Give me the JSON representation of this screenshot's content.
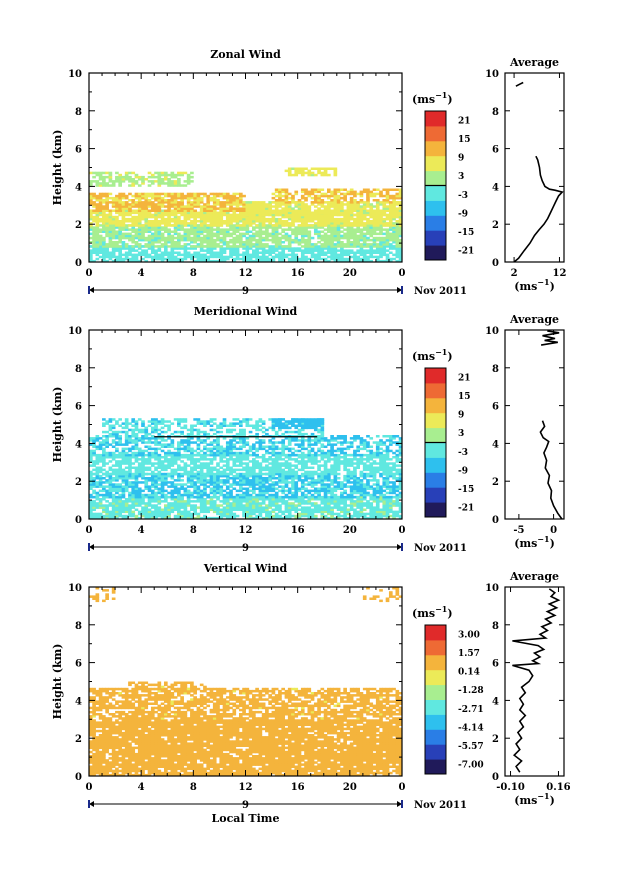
{
  "chart_data": [
    {
      "type": "heatmap",
      "title": "Zonal Wind",
      "ylabel": "Height (km)",
      "x_ticks": [
        "0",
        "4",
        "8",
        "12",
        "16",
        "20",
        "0"
      ],
      "y_ticks": [
        "0",
        "2",
        "4",
        "6",
        "8",
        "10"
      ],
      "xlim": [
        0,
        24
      ],
      "ylim": [
        0,
        10
      ],
      "day_label": "9",
      "date_label": "Nov 2011",
      "colorbar": {
        "unit": "ms",
        "unit_exp": "−1",
        "ticks": [
          "21",
          "15",
          "9",
          "3",
          "-3",
          "-9",
          "-15",
          "-21"
        ],
        "range": [
          -24,
          24
        ]
      },
      "field": {
        "layers": [
          {
            "ybot": 0.0,
            "ytop": 0.8,
            "x0": 0,
            "x1": 24,
            "value": -3,
            "density": 0.75
          },
          {
            "ybot": 0.8,
            "ytop": 1.9,
            "x0": 0,
            "x1": 24,
            "value": 1,
            "density": 0.8
          },
          {
            "ybot": 1.9,
            "ytop": 2.7,
            "x0": 0,
            "x1": 24,
            "value": 6,
            "density": 0.85
          },
          {
            "ybot": 2.7,
            "ytop": 3.6,
            "x0": 0,
            "x1": 12,
            "value": 10,
            "density": 0.85
          },
          {
            "ybot": 2.5,
            "ytop": 3.2,
            "x0": 12,
            "x1": 24,
            "value": 6,
            "density": 0.8
          },
          {
            "ybot": 3.2,
            "ytop": 3.8,
            "x0": 14,
            "x1": 24,
            "value": 10,
            "density": 0.6
          },
          {
            "ybot": 4.0,
            "ytop": 4.7,
            "x0": 0,
            "x1": 8,
            "value": 4,
            "density": 0.6
          },
          {
            "ybot": 4.6,
            "ytop": 4.9,
            "x0": 15,
            "x1": 19,
            "value": 6,
            "density": 0.7
          }
        ]
      },
      "contour_zero": []
    },
    {
      "type": "heatmap",
      "title": "Meridional Wind",
      "ylabel": "Height (km)",
      "x_ticks": [
        "0",
        "4",
        "8",
        "12",
        "16",
        "20",
        "0"
      ],
      "y_ticks": [
        "0",
        "2",
        "4",
        "6",
        "8",
        "10"
      ],
      "xlim": [
        0,
        24
      ],
      "ylim": [
        0,
        10
      ],
      "day_label": "9",
      "date_label": "Nov 2011",
      "colorbar": {
        "unit": "ms",
        "unit_exp": "−1",
        "ticks": [
          "21",
          "15",
          "9",
          "3",
          "-3",
          "-9",
          "-15",
          "-21"
        ],
        "range": [
          -24,
          24
        ]
      },
      "field": {
        "layers": [
          {
            "ybot": 0.0,
            "ytop": 1.2,
            "x0": 0,
            "x1": 24,
            "value": -1,
            "density": 0.8
          },
          {
            "ybot": 1.2,
            "ytop": 2.4,
            "x0": 0,
            "x1": 24,
            "value": -5,
            "density": 0.75
          },
          {
            "ybot": 2.4,
            "ytop": 3.4,
            "x0": 0,
            "x1": 24,
            "value": -2,
            "density": 0.7
          },
          {
            "ybot": 3.4,
            "ytop": 4.4,
            "x0": 0,
            "x1": 24,
            "value": -5,
            "density": 0.6
          },
          {
            "ybot": 4.4,
            "ytop": 5.3,
            "x0": 1,
            "x1": 18,
            "value": -4,
            "density": 0.5
          },
          {
            "ybot": 4.8,
            "ytop": 5.3,
            "x0": 14,
            "x1": 18,
            "value": -8,
            "density": 0.8
          }
        ]
      },
      "contour_zero": [
        {
          "x0": 5,
          "x1": 17.5,
          "y": 4.35
        }
      ]
    },
    {
      "type": "heatmap",
      "title": "Vertical Wind",
      "ylabel": "Height (km)",
      "xlabel": "Local Time",
      "x_ticks": [
        "0",
        "4",
        "8",
        "12",
        "16",
        "20",
        "0"
      ],
      "y_ticks": [
        "0",
        "2",
        "4",
        "6",
        "8",
        "10"
      ],
      "xlim": [
        0,
        24
      ],
      "ylim": [
        0,
        10
      ],
      "day_label": "9",
      "date_label": "Nov 2011",
      "colorbar": {
        "unit": "ms",
        "unit_exp": "−1",
        "ticks": [
          "3.00",
          "1.57",
          "0.14",
          "-1.28",
          "-2.71",
          "-4.14",
          "-5.57",
          "-7.00"
        ],
        "range": [
          -7.7,
          3.7
        ]
      },
      "field": {
        "layers": [
          {
            "ybot": 0.0,
            "ytop": 3.0,
            "x0": 0,
            "x1": 24,
            "value": 0.8,
            "density": 0.9
          },
          {
            "ybot": 3.0,
            "ytop": 4.6,
            "x0": 0,
            "x1": 24,
            "value": 0.6,
            "density": 0.7
          },
          {
            "ybot": 4.5,
            "ytop": 4.9,
            "x0": 3,
            "x1": 9,
            "value": 0.6,
            "density": 0.5
          },
          {
            "ybot": 9.3,
            "ytop": 10.0,
            "x0": 0,
            "x1": 2,
            "value": 0.7,
            "density": 0.3
          },
          {
            "ybot": 9.3,
            "ytop": 10.0,
            "x0": 21,
            "x1": 24,
            "value": 0.7,
            "density": 0.3
          }
        ]
      },
      "contour_zero": []
    }
  ],
  "averages": [
    {
      "title": "Average",
      "x_ticks": [
        "2",
        "12"
      ],
      "xlim": [
        0,
        13
      ],
      "ylim": [
        0,
        10
      ],
      "xlabel_unit": "ms",
      "xlabel_exp": "−1",
      "profile": [
        [
          2.0,
          0.0
        ],
        [
          3.0,
          0.2
        ],
        [
          4.2,
          0.6
        ],
        [
          5.5,
          1.0
        ],
        [
          6.5,
          1.4
        ],
        [
          7.5,
          1.7
        ],
        [
          8.6,
          2.0
        ],
        [
          9.4,
          2.3
        ],
        [
          10.0,
          2.6
        ],
        [
          10.6,
          2.9
        ],
        [
          11.2,
          3.2
        ],
        [
          11.8,
          3.5
        ],
        [
          12.6,
          3.7
        ],
        [
          11.0,
          3.8
        ],
        [
          9.8,
          3.85
        ],
        [
          8.8,
          4.0
        ],
        [
          8.2,
          4.3
        ],
        [
          7.8,
          4.6
        ],
        [
          7.6,
          5.0
        ],
        [
          7.2,
          5.4
        ],
        [
          6.8,
          5.6
        ]
      ],
      "profile_top": [
        [
          2.4,
          9.3
        ],
        [
          3.2,
          9.4
        ],
        [
          4.0,
          9.5
        ]
      ]
    },
    {
      "title": "Average",
      "x_ticks": [
        "-5",
        "0"
      ],
      "xlim": [
        -7,
        1.5
      ],
      "ylim": [
        0,
        10
      ],
      "xlabel_unit": "ms",
      "xlabel_exp": "−1",
      "profile": [
        [
          1.2,
          0.0
        ],
        [
          0.6,
          0.3
        ],
        [
          0.0,
          0.7
        ],
        [
          -0.4,
          1.1
        ],
        [
          -0.3,
          1.5
        ],
        [
          -0.8,
          1.9
        ],
        [
          -0.6,
          2.3
        ],
        [
          -1.2,
          2.7
        ],
        [
          -1.0,
          3.1
        ],
        [
          -1.4,
          3.5
        ],
        [
          -1.0,
          3.8
        ],
        [
          -0.7,
          4.1
        ],
        [
          -1.5,
          4.3
        ],
        [
          -1.9,
          4.6
        ],
        [
          -1.3,
          4.9
        ],
        [
          -1.6,
          5.2
        ]
      ],
      "profile_top": [
        [
          -1.8,
          9.2
        ],
        [
          0.6,
          9.35
        ],
        [
          -1.3,
          9.45
        ],
        [
          0.2,
          9.55
        ],
        [
          -1.6,
          9.7
        ],
        [
          0.8,
          9.85
        ],
        [
          -0.9,
          9.95
        ]
      ]
    },
    {
      "title": "Average",
      "x_ticks": [
        "-0.10",
        "0.16"
      ],
      "xlim": [
        -0.13,
        0.19
      ],
      "ylim": [
        0,
        10
      ],
      "xlabel_unit": "ms",
      "xlabel_exp": "−1",
      "profile": [
        [
          -0.05,
          0.2
        ],
        [
          -0.07,
          0.5
        ],
        [
          -0.04,
          0.8
        ],
        [
          -0.08,
          1.1
        ],
        [
          -0.05,
          1.4
        ],
        [
          -0.07,
          1.7
        ],
        [
          -0.04,
          2.0
        ],
        [
          -0.06,
          2.3
        ],
        [
          -0.03,
          2.6
        ],
        [
          -0.05,
          2.9
        ],
        [
          -0.02,
          3.2
        ],
        [
          -0.05,
          3.5
        ],
        [
          -0.03,
          3.8
        ],
        [
          -0.05,
          4.1
        ],
        [
          -0.02,
          4.4
        ],
        [
          -0.04,
          4.7
        ],
        [
          0.0,
          5.0
        ],
        [
          0.02,
          5.3
        ],
        [
          0.0,
          5.6
        ],
        [
          -0.09,
          5.85
        ],
        [
          0.05,
          5.95
        ],
        [
          0.02,
          6.1
        ],
        [
          0.06,
          6.3
        ],
        [
          0.03,
          6.5
        ],
        [
          0.08,
          6.7
        ],
        [
          0.05,
          6.9
        ],
        [
          -0.09,
          7.15
        ],
        [
          0.09,
          7.3
        ],
        [
          0.06,
          7.5
        ],
        [
          0.1,
          7.7
        ],
        [
          0.07,
          7.9
        ],
        [
          0.12,
          8.1
        ],
        [
          0.09,
          8.3
        ],
        [
          0.14,
          8.5
        ],
        [
          0.1,
          8.7
        ],
        [
          0.15,
          8.9
        ],
        [
          0.11,
          9.1
        ],
        [
          0.16,
          9.3
        ],
        [
          0.12,
          9.5
        ],
        [
          0.14,
          9.7
        ],
        [
          0.11,
          9.9
        ]
      ],
      "profile_top": []
    }
  ],
  "colors": {
    "colormap": [
      "#201a5a",
      "#2840b8",
      "#2a7ee6",
      "#2ec0ee",
      "#60e8e0",
      "#a8ee90",
      "#ecea58",
      "#f4b43c",
      "#ee6a34",
      "#e02a2a"
    ]
  }
}
